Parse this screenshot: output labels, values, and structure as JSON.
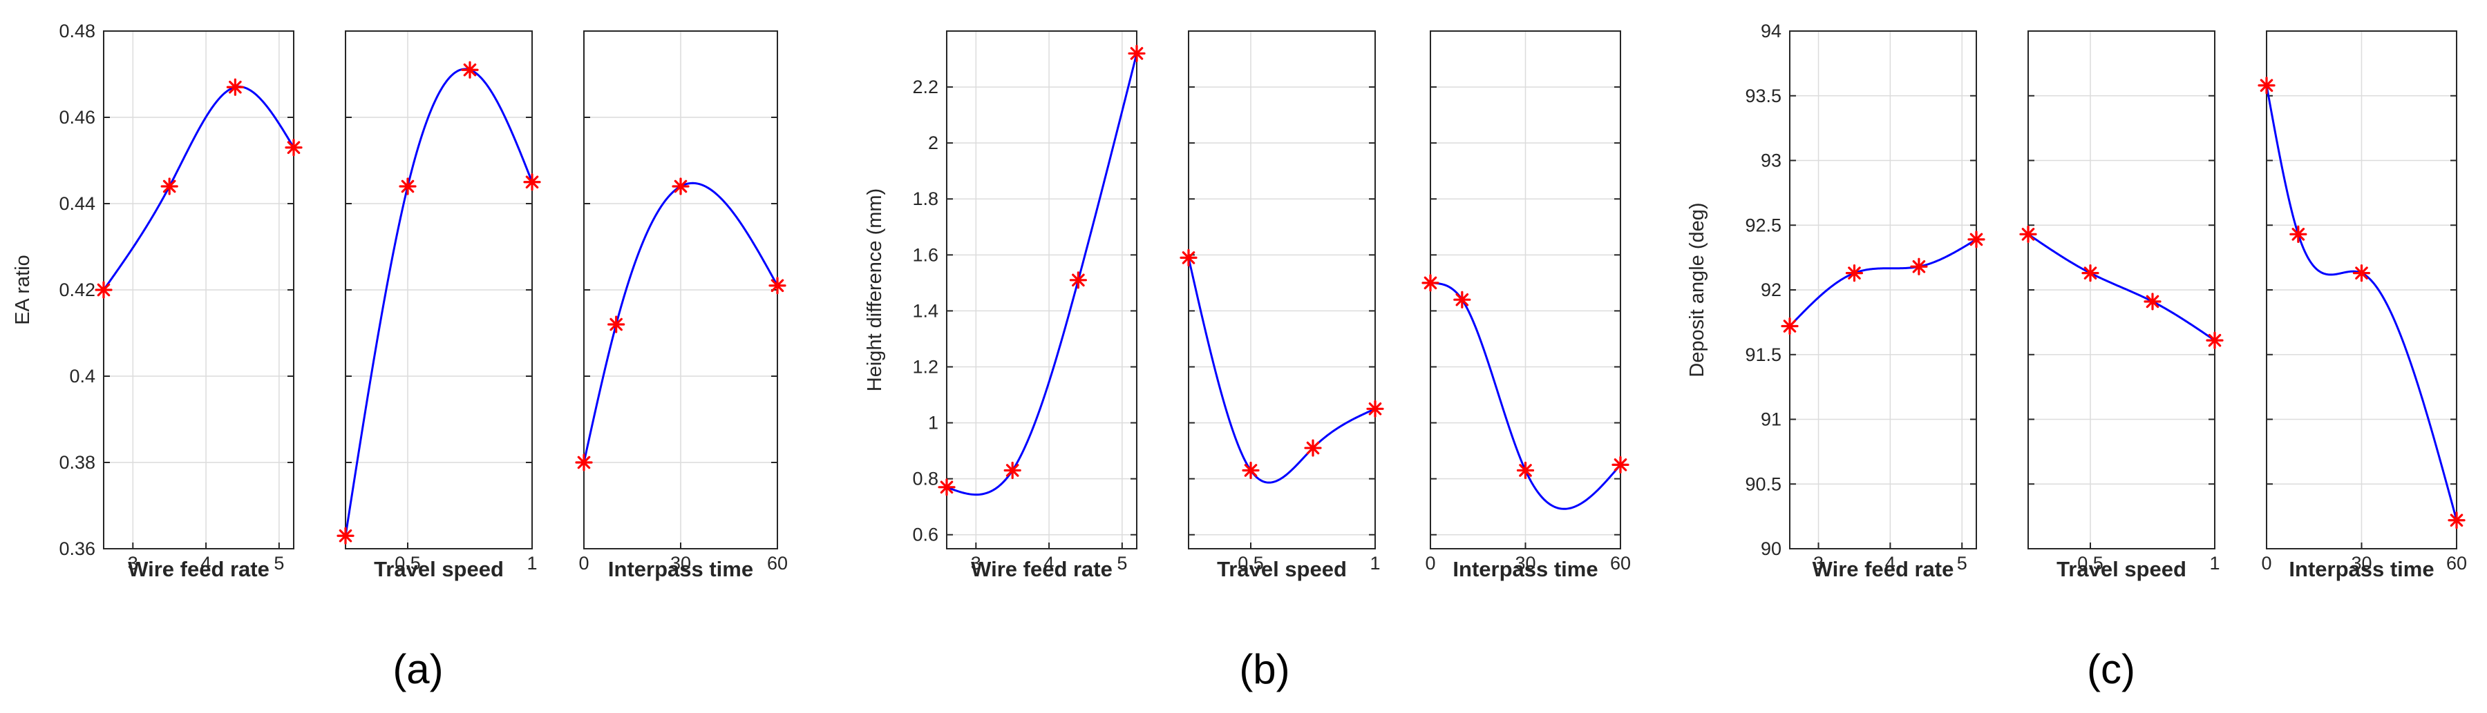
{
  "colors": {
    "curve": "#0000ff",
    "marker": "#ff0000",
    "axis": "#262626",
    "grid": "#dcdcdc"
  },
  "chart_data": [
    {
      "type": "line",
      "caption": "(a)",
      "ylabel": "EA ratio",
      "ylim": [
        0.36,
        0.48
      ],
      "yticks": [
        0.36,
        0.38,
        0.4,
        0.42,
        0.44,
        0.46,
        0.48
      ],
      "ytick_labels": [
        "0.36",
        "0.38",
        "0.4",
        "0.42",
        "0.44",
        "0.46",
        "0.48"
      ],
      "grid": true,
      "panels": [
        {
          "xlabel": "Wire feed rate",
          "xlim": [
            2.6,
            5.2
          ],
          "xticks": [
            3,
            4,
            5
          ],
          "xtick_labels": [
            "3",
            "4",
            "5"
          ],
          "points": {
            "x": [
              2.6,
              3.5,
              4.4,
              5.2
            ],
            "y": [
              0.42,
              0.444,
              0.467,
              0.453
            ]
          }
        },
        {
          "xlabel": "Travel speed",
          "xlim": [
            0.25,
            1.0
          ],
          "xticks": [
            0.5,
            1
          ],
          "xtick_labels": [
            "0.5",
            "1"
          ],
          "points": {
            "x": [
              0.25,
              0.5,
              0.75,
              1.0
            ],
            "y": [
              0.363,
              0.444,
              0.471,
              0.445
            ]
          }
        },
        {
          "xlabel": "Interpass time",
          "xlim": [
            0,
            60
          ],
          "xticks": [
            0,
            30,
            60
          ],
          "xtick_labels": [
            "0",
            "30",
            "60"
          ],
          "points": {
            "x": [
              0,
              10,
              30,
              60
            ],
            "y": [
              0.38,
              0.412,
              0.444,
              0.421
            ]
          }
        }
      ]
    },
    {
      "type": "line",
      "caption": "(b)",
      "ylabel": "Height difference (mm)",
      "ylim": [
        0.55,
        2.4
      ],
      "yticks": [
        0.6,
        0.8,
        1,
        1.2,
        1.4,
        1.6,
        1.8,
        2,
        2.2
      ],
      "ytick_labels": [
        "0.6",
        "0.8",
        "1",
        "1.2",
        "1.4",
        "1.6",
        "1.8",
        "2",
        "2.2"
      ],
      "grid": true,
      "panels": [
        {
          "xlabel": "Wire feed rate",
          "xlim": [
            2.6,
            5.2
          ],
          "xticks": [
            3,
            4,
            5
          ],
          "xtick_labels": [
            "3",
            "4",
            "5"
          ],
          "points": {
            "x": [
              2.6,
              3.5,
              4.4,
              5.2
            ],
            "y": [
              0.77,
              0.83,
              1.51,
              2.32
            ]
          }
        },
        {
          "xlabel": "Travel speed",
          "xlim": [
            0.25,
            1.0
          ],
          "xticks": [
            0.5,
            1
          ],
          "xtick_labels": [
            "0.5",
            "1"
          ],
          "points": {
            "x": [
              0.25,
              0.5,
              0.75,
              1.0
            ],
            "y": [
              1.59,
              0.83,
              0.91,
              1.05
            ]
          }
        },
        {
          "xlabel": "Interpass time",
          "xlim": [
            0,
            60
          ],
          "xticks": [
            0,
            30,
            60
          ],
          "xtick_labels": [
            "0",
            "30",
            "60"
          ],
          "points": {
            "x": [
              0,
              10,
              30,
              60
            ],
            "y": [
              1.5,
              1.44,
              0.83,
              0.85
            ]
          }
        }
      ]
    },
    {
      "type": "line",
      "caption": "(c)",
      "ylabel": "Deposit angle (deg)",
      "ylim": [
        90,
        94
      ],
      "yticks": [
        90,
        90.5,
        91,
        91.5,
        92,
        92.5,
        93,
        93.5,
        94
      ],
      "ytick_labels": [
        "90",
        "90.5",
        "91",
        "91.5",
        "92",
        "92.5",
        "93",
        "93.5",
        "94"
      ],
      "grid": true,
      "panels": [
        {
          "xlabel": "Wire feed rate",
          "xlim": [
            2.6,
            5.2
          ],
          "xticks": [
            3,
            4,
            5
          ],
          "xtick_labels": [
            "3",
            "4",
            "5"
          ],
          "points": {
            "x": [
              2.6,
              3.5,
              4.4,
              5.2
            ],
            "y": [
              91.72,
              92.13,
              92.18,
              92.39
            ]
          }
        },
        {
          "xlabel": "Travel speed",
          "xlim": [
            0.25,
            1.0
          ],
          "xticks": [
            0.5,
            1
          ],
          "xtick_labels": [
            "0.5",
            "1"
          ],
          "points": {
            "x": [
              0.25,
              0.5,
              0.75,
              1.0
            ],
            "y": [
              92.43,
              92.13,
              91.91,
              91.61
            ]
          }
        },
        {
          "xlabel": "Interpass time",
          "xlim": [
            0,
            60
          ],
          "xticks": [
            0,
            30,
            60
          ],
          "xtick_labels": [
            "0",
            "30",
            "60"
          ],
          "points": {
            "x": [
              0,
              10,
              30,
              60
            ],
            "y": [
              93.58,
              92.43,
              92.13,
              90.22
            ]
          }
        }
      ]
    }
  ]
}
